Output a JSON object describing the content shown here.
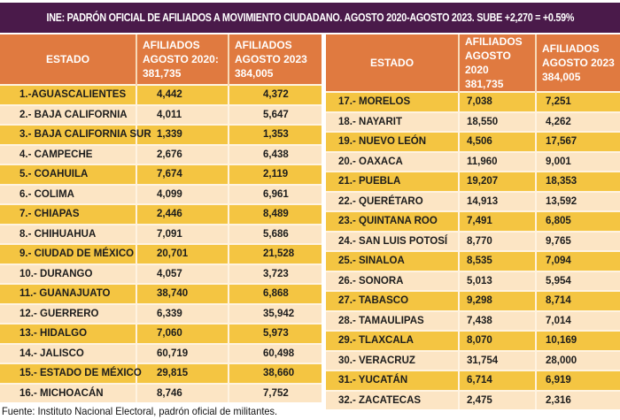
{
  "title": "INE: PADRÓN OFICIAL DE AFILIADOS A MOVIMIENTO CIUDADANO.  AGOSTO 2020-AGOSTO 2023. SUBE +2,270 = +0.59%",
  "colors": {
    "title_bg": "#4a1a4a",
    "header_bg": "#e07a40",
    "row_odd": "#f4c542",
    "row_even": "#fce5c4"
  },
  "left_table": {
    "headers": {
      "estado": "ESTADO",
      "col1": [
        "AFILIADOS",
        "AGOSTO 2020:",
        "381,735"
      ],
      "col2": [
        "AFILIADOS",
        "AGOSTO 2023",
        "384,005"
      ]
    },
    "rows": [
      {
        "estado": "1.-AGUASCALIENTES",
        "a2020": "4,442",
        "a2023": "4,372"
      },
      {
        "estado": "2.- BAJA CALIFORNIA",
        "a2020": "4,011",
        "a2023": "5,647"
      },
      {
        "estado": "3.- BAJA CALIFORNIA SUR",
        "a2020": "1,339",
        "a2023": "1,353"
      },
      {
        "estado": "4.- CAMPECHE",
        "a2020": "2,676",
        "a2023": "6,438"
      },
      {
        "estado": "5.- COAHUILA",
        "a2020": "7,674",
        "a2023": "2,119"
      },
      {
        "estado": "6.- COLIMA",
        "a2020": "4,099",
        "a2023": "6,961"
      },
      {
        "estado": "7.- CHIAPAS",
        "a2020": "2,446",
        "a2023": "8,489"
      },
      {
        "estado": "8.- CHIHUAHUA",
        "a2020": "7,091",
        "a2023": "5,686"
      },
      {
        "estado": "9.- CIUDAD DE MÉXICO",
        "a2020": "20,701",
        "a2023": "21,528"
      },
      {
        "estado": "10.- DURANGO",
        "a2020": "4,057",
        "a2023": "3,723"
      },
      {
        "estado": "11.- GUANAJUATO",
        "a2020": "38,740",
        "a2023": "6,868"
      },
      {
        "estado": "12.- GUERRERO",
        "a2020": "6,339",
        "a2023": "35,942"
      },
      {
        "estado": "13.- HIDALGO",
        "a2020": "7,060",
        "a2023": "5,973"
      },
      {
        "estado": "14.- JALISCO",
        "a2020": "60,719",
        "a2023": "60,498"
      },
      {
        "estado": "15.- ESTADO DE MÉXICO",
        "a2020": "29,815",
        "a2023": "38,660"
      },
      {
        "estado": "16.- MICHOACÁN",
        "a2020": "8,746",
        "a2023": "7,752"
      }
    ]
  },
  "right_table": {
    "headers": {
      "estado": "ESTADO",
      "col1": [
        "AFILIADOS",
        "AGOSTO 2020",
        "381,735"
      ],
      "col2": [
        "AFILIADOS",
        "AGOSTO 2023",
        "384,005"
      ]
    },
    "rows": [
      {
        "estado": "17.- MORELOS",
        "a2020": "7,038",
        "a2023": "7,251"
      },
      {
        "estado": "18.- NAYARIT",
        "a2020": "18,550",
        "a2023": "4,262"
      },
      {
        "estado": "19.- NUEVO LEÓN",
        "a2020": "4,506",
        "a2023": "17,567"
      },
      {
        "estado": "20.- OAXACA",
        "a2020": "11,960",
        "a2023": "9,001"
      },
      {
        "estado": "21.- PUEBLA",
        "a2020": "19,207",
        "a2023": "18,353"
      },
      {
        "estado": "22.- QUERÉTARO",
        "a2020": "14,913",
        "a2023": "13,592"
      },
      {
        "estado": "23.- QUINTANA ROO",
        "a2020": "7,491",
        "a2023": "6,805"
      },
      {
        "estado": "24.- SAN LUIS POTOSÍ",
        "a2020": "8,770",
        "a2023": "9,765"
      },
      {
        "estado": "25.- SINALOA",
        "a2020": "8,535",
        "a2023": "7,094"
      },
      {
        "estado": "26.- SONORA",
        "a2020": "5,013",
        "a2023": "5,954"
      },
      {
        "estado": "27.- TABASCO",
        "a2020": "9,298",
        "a2023": "8,714"
      },
      {
        "estado": "28.- TAMAULIPAS",
        "a2020": "7,438",
        "a2023": "7,014"
      },
      {
        "estado": "29.- TLAXCALA",
        "a2020": "8,070",
        "a2023": "10,169"
      },
      {
        "estado": "30.- VERACRUZ",
        "a2020": "31,754",
        "a2023": "28,000"
      },
      {
        "estado": "31.- YUCATÁN",
        "a2020": "6,714",
        "a2023": "6,919"
      },
      {
        "estado": "32.- ZACATECAS",
        "a2020": "2,475",
        "a2023": "2,316"
      }
    ]
  },
  "footer": "Fuente: Instituto Nacional Electoral,  padrón oficial de militantes."
}
